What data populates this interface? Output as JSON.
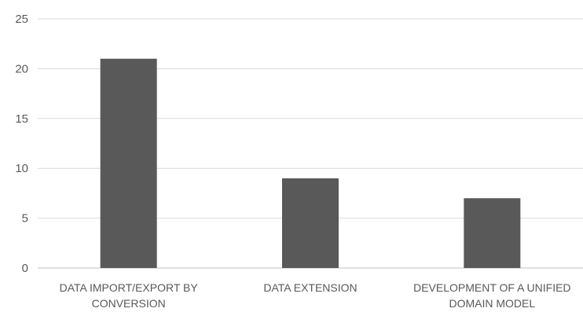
{
  "chart_data": {
    "type": "bar",
    "title": "",
    "xlabel": "",
    "ylabel": "",
    "categories": [
      [
        "DATA IMPORT/EXPORT BY",
        "CONVERSION"
      ],
      [
        "DATA EXTENSION"
      ],
      [
        "DEVELOPMENT OF A UNIFIED",
        "DOMAIN MODEL"
      ]
    ],
    "values": [
      21,
      9,
      7
    ],
    "ylim": [
      0,
      25
    ],
    "yticks": [
      "0",
      "5",
      "10",
      "15",
      "20",
      "25"
    ],
    "grid": true,
    "legend": "none",
    "colors": {
      "bar": "#595959",
      "grid": "#d9d9d9",
      "text": "#595959"
    }
  }
}
